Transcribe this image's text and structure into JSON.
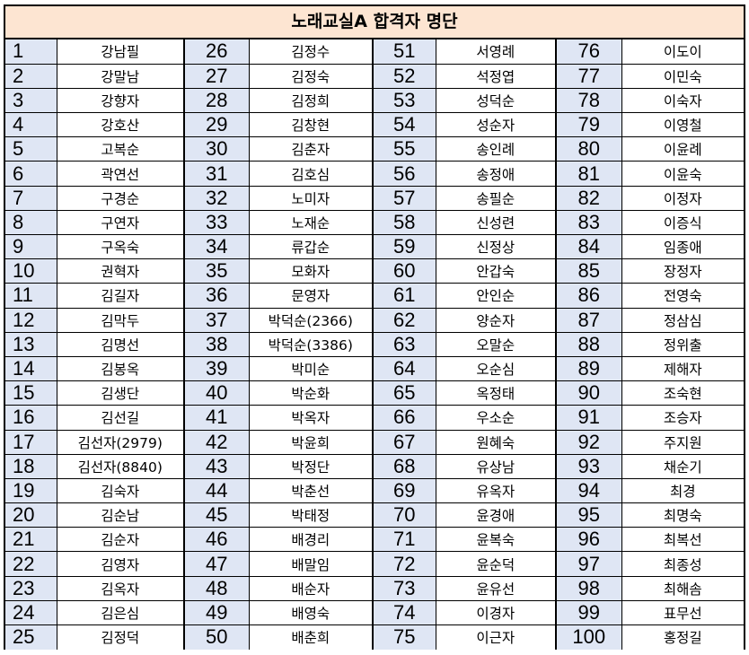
{
  "title": "노래교실A 합격자 명단",
  "columns": [
    {
      "numbers": [
        "1",
        "2",
        "3",
        "4",
        "5",
        "6",
        "7",
        "8",
        "9",
        "10",
        "11",
        "12",
        "13",
        "14",
        "15",
        "16",
        "17",
        "18",
        "19",
        "20",
        "21",
        "22",
        "23",
        "24",
        "25"
      ],
      "names": [
        "강남필",
        "강말남",
        "강향자",
        "강호산",
        "고복순",
        "곽연선",
        "구경순",
        "구연자",
        "구옥숙",
        "권혁자",
        "김길자",
        "김막두",
        "김명선",
        "김봉옥",
        "김생단",
        "김선길",
        "김선자(2979)",
        "김선자(8840)",
        "김숙자",
        "김순남",
        "김순자",
        "김영자",
        "김옥자",
        "김은심",
        "김정덕"
      ]
    },
    {
      "numbers": [
        "26",
        "27",
        "28",
        "29",
        "30",
        "31",
        "32",
        "33",
        "34",
        "35",
        "36",
        "37",
        "38",
        "39",
        "40",
        "41",
        "42",
        "43",
        "44",
        "45",
        "46",
        "47",
        "48",
        "49",
        "50"
      ],
      "names": [
        "김정수",
        "김정숙",
        "김정희",
        "김창현",
        "김춘자",
        "김호심",
        "노미자",
        "노재순",
        "류갑순",
        "모화자",
        "문영자",
        "박덕순(2366)",
        "박덕순(3386)",
        "박미순",
        "박순화",
        "박옥자",
        "박윤희",
        "박정단",
        "박춘선",
        "박태정",
        "배경리",
        "배말임",
        "배순자",
        "배영숙",
        "배춘희"
      ]
    },
    {
      "numbers": [
        "51",
        "52",
        "53",
        "54",
        "55",
        "56",
        "57",
        "58",
        "59",
        "60",
        "61",
        "62",
        "63",
        "64",
        "65",
        "66",
        "67",
        "68",
        "69",
        "70",
        "71",
        "72",
        "73",
        "74",
        "75"
      ],
      "names": [
        "서영례",
        "석정엽",
        "성덕순",
        "성순자",
        "송인례",
        "송정애",
        "송필순",
        "신성련",
        "신정상",
        "안갑숙",
        "안인순",
        "양순자",
        "오말순",
        "오순심",
        "옥정태",
        "우소순",
        "원혜숙",
        "유상남",
        "유옥자",
        "윤경애",
        "윤복숙",
        "윤순덕",
        "윤유선",
        "이경자",
        "이근자"
      ]
    },
    {
      "numbers": [
        "76",
        "77",
        "78",
        "79",
        "80",
        "81",
        "82",
        "83",
        "84",
        "85",
        "86",
        "87",
        "88",
        "89",
        "90",
        "91",
        "92",
        "93",
        "94",
        "95",
        "96",
        "97",
        "98",
        "99",
        "100"
      ],
      "names": [
        "이도이",
        "이민숙",
        "이숙자",
        "이영철",
        "이윤례",
        "이윤숙",
        "이정자",
        "이증식",
        "임종애",
        "장정자",
        "전영숙",
        "정삼심",
        "정위출",
        "제해자",
        "조숙현",
        "조승자",
        "주지원",
        "채순기",
        "최경",
        "최명숙",
        "최복선",
        "최종성",
        "최해솜",
        "표무선",
        "홍정길"
      ]
    }
  ]
}
